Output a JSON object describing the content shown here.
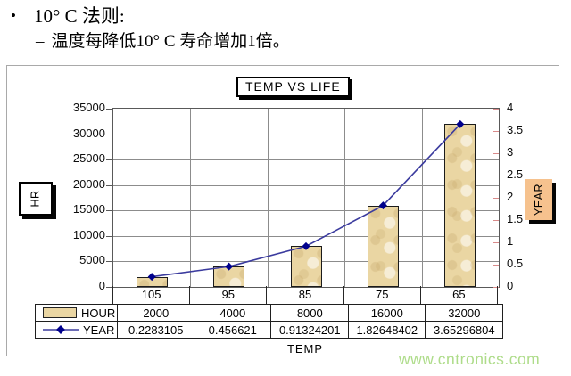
{
  "page": {
    "header": {
      "bullet": "•",
      "title": "10° C 法则:",
      "sub_dash": "–",
      "subtitle": "温度每降低10° C 寿命增加1倍。"
    },
    "watermark": "www.cntronics.com"
  },
  "chart_data": {
    "type": "bar+line combo",
    "title": "TEMP VS LIFE",
    "xlabel": "TEMP",
    "categories": [
      "105",
      "95",
      "85",
      "75",
      "65"
    ],
    "series": [
      {
        "name": "HOUR",
        "type": "bar",
        "axis": "left",
        "values": [
          2000,
          4000,
          8000,
          16000,
          32000
        ],
        "display": [
          "2000",
          "4000",
          "8000",
          "16000",
          "32000"
        ],
        "color": "#ead6a3"
      },
      {
        "name": "YEAR",
        "type": "line",
        "axis": "right",
        "values": [
          0.2283105,
          0.456621,
          0.91324201,
          1.82648402,
          3.65296804
        ],
        "display": [
          "0.2283105",
          "0.456621",
          "0.91324201",
          "1.82648402",
          "3.65296804"
        ],
        "color": "#3b3b9e",
        "marker": "diamond",
        "marker_color": "#00008c"
      }
    ],
    "left_axis": {
      "label": "HR",
      "min": 0,
      "max": 35000,
      "step": 5000
    },
    "right_axis": {
      "label": "YEAR",
      "min": 0,
      "max": 4,
      "step": 0.5
    },
    "grid": true,
    "legend_position": "table-left",
    "colors": {
      "gridline": "#8c8c8c",
      "plot_border": "#595959",
      "right_ticks": "#d98a8a",
      "year_box_fill": "#f6c28e",
      "bar_fill": "#ead6a3",
      "watermark_green": "#a6d97e"
    }
  }
}
